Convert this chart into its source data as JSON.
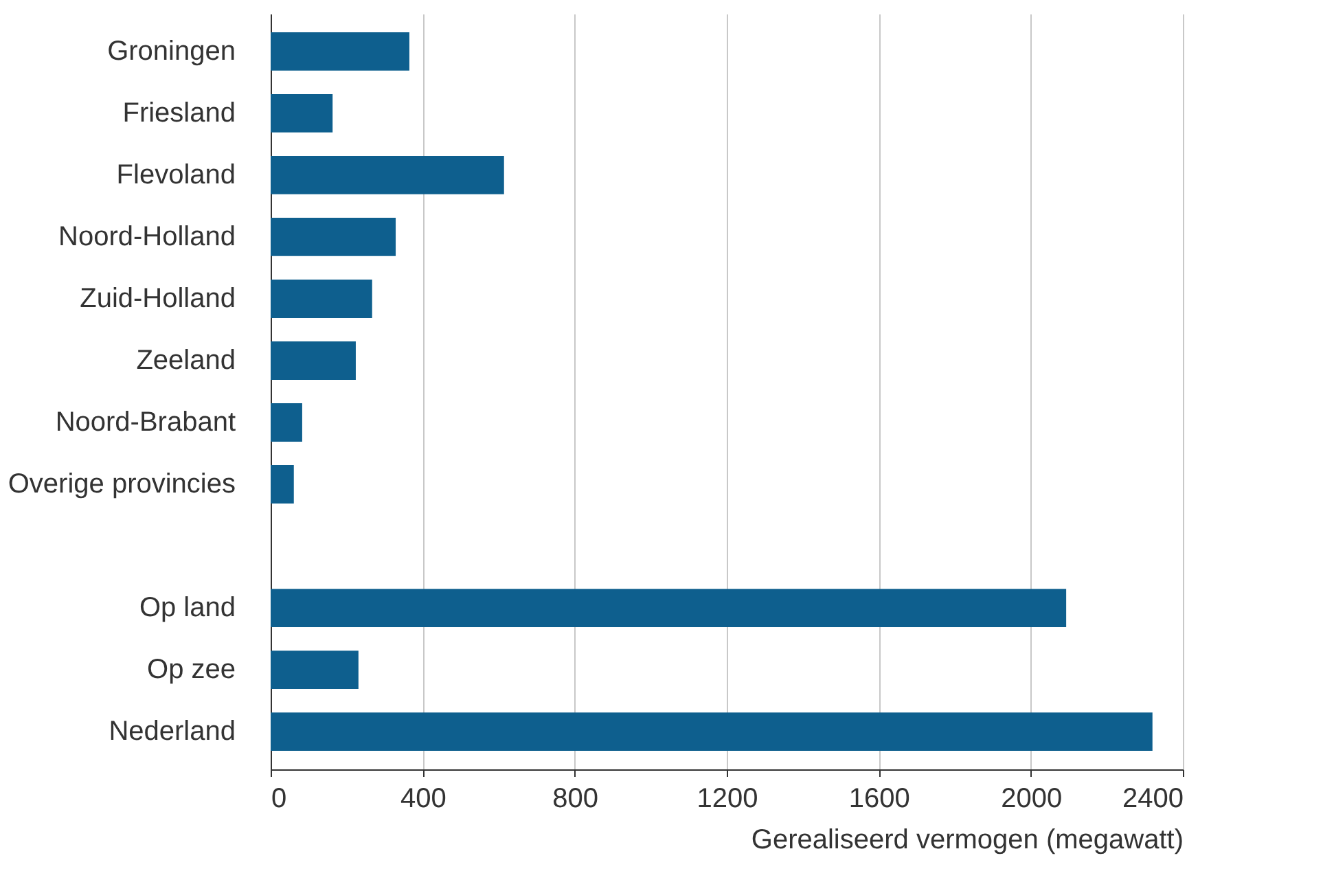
{
  "chart_data": {
    "type": "bar",
    "orientation": "horizontal",
    "xlabel": "Gerealiseerd vermogen (megawatt)",
    "categories": [
      "Groningen",
      "Friesland",
      "Flevoland",
      "Noord-Holland",
      "Zuid-Holland",
      "Zeeland",
      "Noord-Brabant",
      "Overige provincies",
      null,
      "Op land",
      "Op zee",
      "Nederland"
    ],
    "values": [
      365,
      163,
      614,
      329,
      267,
      224,
      83,
      61,
      null,
      2093,
      231,
      2320
    ],
    "color": "#0e5f8e",
    "xlim": [
      0,
      2400
    ],
    "xticks": [
      0,
      400,
      800,
      1200,
      1600,
      2000,
      2400
    ],
    "grid": "x"
  }
}
